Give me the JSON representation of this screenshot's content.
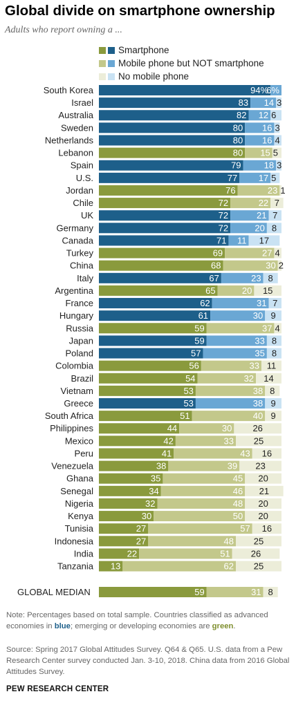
{
  "header": {
    "title": "Global divide on smartphone ownership",
    "subtitle": "Adults who report owning a ..."
  },
  "legend": [
    {
      "label": "Smartphone",
      "colors": [
        "#8a9a3d",
        "#1d5f8a"
      ]
    },
    {
      "label": "Mobile phone but NOT smartphone",
      "colors": [
        "#c3c88b",
        "#6aa7d4"
      ]
    },
    {
      "label": "No mobile phone",
      "colors": [
        "#ecedd9",
        "#c9e2f3"
      ]
    }
  ],
  "colors": {
    "advanced": [
      "#1d5f8a",
      "#6aa7d4",
      "#c9e2f3"
    ],
    "emerging": [
      "#8a9a3d",
      "#c3c88b",
      "#ecedd9"
    ]
  },
  "chart_data": {
    "type": "bar",
    "orientation": "horizontal",
    "stacked": true,
    "series_names": [
      "Smartphone",
      "Mobile phone but NOT smartphone",
      "No mobile phone"
    ],
    "rows": [
      {
        "country": "South Korea",
        "group": "advanced",
        "values": [
          94,
          6,
          0
        ],
        "labels": [
          "94%",
          "6%",
          ""
        ]
      },
      {
        "country": "Israel",
        "group": "advanced",
        "values": [
          83,
          14,
          3
        ],
        "labels": [
          "83",
          "14",
          "3"
        ]
      },
      {
        "country": "Australia",
        "group": "advanced",
        "values": [
          82,
          12,
          6
        ],
        "labels": [
          "82",
          "12",
          "6"
        ]
      },
      {
        "country": "Sweden",
        "group": "advanced",
        "values": [
          80,
          16,
          3
        ],
        "labels": [
          "80",
          "16",
          "3"
        ]
      },
      {
        "country": "Netherlands",
        "group": "advanced",
        "values": [
          80,
          16,
          4
        ],
        "labels": [
          "80",
          "16",
          "4"
        ]
      },
      {
        "country": "Lebanon",
        "group": "emerging",
        "values": [
          80,
          15,
          5
        ],
        "labels": [
          "80",
          "15",
          "5"
        ]
      },
      {
        "country": "Spain",
        "group": "advanced",
        "values": [
          79,
          18,
          3
        ],
        "labels": [
          "79",
          "18",
          "3"
        ]
      },
      {
        "country": "U.S.",
        "group": "advanced",
        "values": [
          77,
          17,
          5
        ],
        "labels": [
          "77",
          "17",
          "5"
        ]
      },
      {
        "country": "Jordan",
        "group": "emerging",
        "values": [
          76,
          23,
          1
        ],
        "labels": [
          "76",
          "23",
          "1"
        ]
      },
      {
        "country": "Chile",
        "group": "emerging",
        "values": [
          72,
          22,
          7
        ],
        "labels": [
          "72",
          "22",
          "7"
        ]
      },
      {
        "country": "UK",
        "group": "advanced",
        "values": [
          72,
          21,
          7
        ],
        "labels": [
          "72",
          "21",
          "7"
        ]
      },
      {
        "country": "Germany",
        "group": "advanced",
        "values": [
          72,
          20,
          8
        ],
        "labels": [
          "72",
          "20",
          "8"
        ]
      },
      {
        "country": "Canada",
        "group": "advanced",
        "values": [
          71,
          11,
          17
        ],
        "labels": [
          "71",
          "11",
          "17"
        ]
      },
      {
        "country": "Turkey",
        "group": "emerging",
        "values": [
          69,
          27,
          4
        ],
        "labels": [
          "69",
          "27",
          "4"
        ]
      },
      {
        "country": "China",
        "group": "emerging",
        "values": [
          68,
          30,
          2
        ],
        "labels": [
          "68",
          "30",
          "2"
        ]
      },
      {
        "country": "Italy",
        "group": "advanced",
        "values": [
          67,
          23,
          8
        ],
        "labels": [
          "67",
          "23",
          "8"
        ]
      },
      {
        "country": "Argentina",
        "group": "emerging",
        "values": [
          65,
          20,
          15
        ],
        "labels": [
          "65",
          "20",
          "15"
        ]
      },
      {
        "country": "France",
        "group": "advanced",
        "values": [
          62,
          31,
          7
        ],
        "labels": [
          "62",
          "31",
          "7"
        ]
      },
      {
        "country": "Hungary",
        "group": "advanced",
        "values": [
          61,
          30,
          9
        ],
        "labels": [
          "61",
          "30",
          "9"
        ]
      },
      {
        "country": "Russia",
        "group": "emerging",
        "values": [
          59,
          37,
          4
        ],
        "labels": [
          "59",
          "37",
          "4"
        ]
      },
      {
        "country": "Japan",
        "group": "advanced",
        "values": [
          59,
          33,
          8
        ],
        "labels": [
          "59",
          "33",
          "8"
        ]
      },
      {
        "country": "Poland",
        "group": "advanced",
        "values": [
          57,
          35,
          8
        ],
        "labels": [
          "57",
          "35",
          "8"
        ]
      },
      {
        "country": "Colombia",
        "group": "emerging",
        "values": [
          56,
          33,
          11
        ],
        "labels": [
          "56",
          "33",
          "11"
        ]
      },
      {
        "country": "Brazil",
        "group": "emerging",
        "values": [
          54,
          32,
          14
        ],
        "labels": [
          "54",
          "32",
          "14"
        ]
      },
      {
        "country": "Vietnam",
        "group": "emerging",
        "values": [
          53,
          38,
          8
        ],
        "labels": [
          "53",
          "38",
          "8"
        ]
      },
      {
        "country": "Greece",
        "group": "advanced",
        "values": [
          53,
          38,
          9
        ],
        "labels": [
          "53",
          "38",
          "9"
        ]
      },
      {
        "country": "South Africa",
        "group": "emerging",
        "values": [
          51,
          40,
          9
        ],
        "labels": [
          "51",
          "40",
          "9"
        ]
      },
      {
        "country": "Philippines",
        "group": "emerging",
        "values": [
          44,
          30,
          26
        ],
        "labels": [
          "44",
          "30",
          "26"
        ]
      },
      {
        "country": "Mexico",
        "group": "emerging",
        "values": [
          42,
          33,
          25
        ],
        "labels": [
          "42",
          "33",
          "25"
        ]
      },
      {
        "country": "Peru",
        "group": "emerging",
        "values": [
          41,
          43,
          16
        ],
        "labels": [
          "41",
          "43",
          "16"
        ]
      },
      {
        "country": "Venezuela",
        "group": "emerging",
        "values": [
          38,
          39,
          23
        ],
        "labels": [
          "38",
          "39",
          "23"
        ]
      },
      {
        "country": "Ghana",
        "group": "emerging",
        "values": [
          35,
          45,
          20
        ],
        "labels": [
          "35",
          "45",
          "20"
        ]
      },
      {
        "country": "Senegal",
        "group": "emerging",
        "values": [
          34,
          46,
          21
        ],
        "labels": [
          "34",
          "46",
          "21"
        ]
      },
      {
        "country": "Nigeria",
        "group": "emerging",
        "values": [
          32,
          48,
          20
        ],
        "labels": [
          "32",
          "48",
          "20"
        ]
      },
      {
        "country": "Kenya",
        "group": "emerging",
        "values": [
          30,
          50,
          20
        ],
        "labels": [
          "30",
          "50",
          "20"
        ]
      },
      {
        "country": "Tunisia",
        "group": "emerging",
        "values": [
          27,
          57,
          16
        ],
        "labels": [
          "27",
          "57",
          "16"
        ]
      },
      {
        "country": "Indonesia",
        "group": "emerging",
        "values": [
          27,
          48,
          25
        ],
        "labels": [
          "27",
          "48",
          "25"
        ]
      },
      {
        "country": "India",
        "group": "emerging",
        "values": [
          22,
          51,
          26
        ],
        "labels": [
          "22",
          "51",
          "26"
        ]
      },
      {
        "country": "Tanzania",
        "group": "emerging",
        "values": [
          13,
          62,
          25
        ],
        "labels": [
          "13",
          "62",
          "25"
        ]
      }
    ],
    "median": {
      "country": "GLOBAL MEDIAN",
      "group": "emerging",
      "values": [
        59,
        31,
        8
      ],
      "labels": [
        "59",
        "31",
        "8"
      ]
    }
  },
  "notes": {
    "note_prefix": "Note: Percentages based on total sample. Countries classified as advanced economies in ",
    "note_blue": "blue",
    "note_middle": "; emerging or developing economies are ",
    "note_green": "green",
    "note_suffix": ".",
    "source": "Source: Spring 2017 Global Attitudes Survey. Q64 & Q65. U.S. data from a Pew Research Center survey conducted Jan. 3-10, 2018. China data from 2016 Global Attitudes Survey.",
    "brand": "PEW RESEARCH CENTER"
  }
}
